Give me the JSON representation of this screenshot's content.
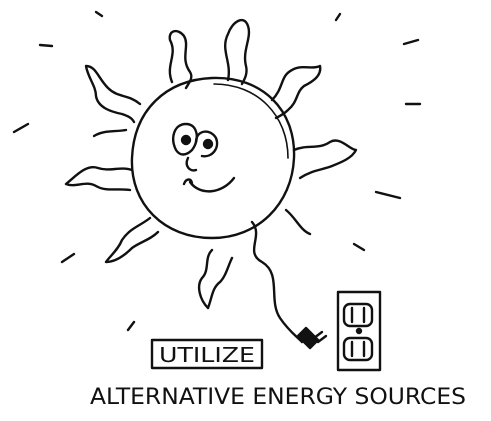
{
  "sign": {
    "label": "UTILIZE"
  },
  "caption": "ALTERNATIVE ENERGY SOURCES"
}
